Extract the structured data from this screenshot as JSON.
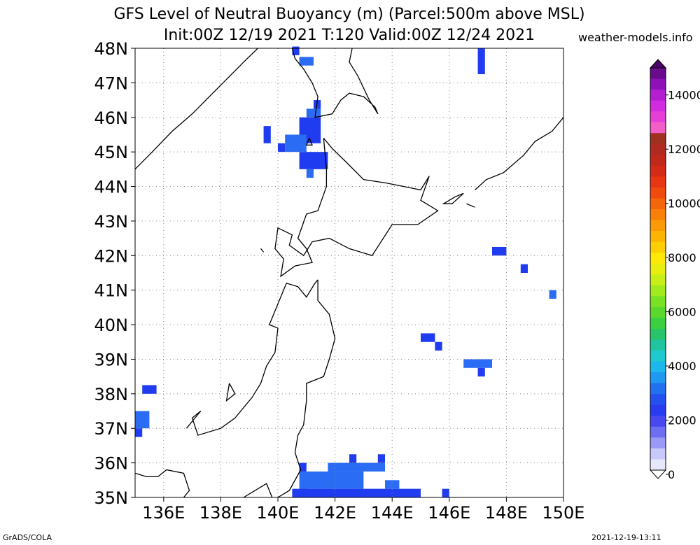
{
  "title": {
    "line1": "GFS Level of Neutral Buoyancy (m) (Parcel:500m above MSL)",
    "line2": "Init:00Z 12/19 2021 T:120 Valid:00Z 12/24 2021"
  },
  "site": "weather-models.info",
  "footer": {
    "left": "GrADS/COLA",
    "right": "2021-12-19-13:11"
  },
  "map": {
    "lon_range": [
      135,
      150
    ],
    "lat_range": [
      35,
      48
    ],
    "lon_ticks": [
      {
        "value": 136,
        "label": "136E"
      },
      {
        "value": 138,
        "label": "138E"
      },
      {
        "value": 140,
        "label": "140E"
      },
      {
        "value": 142,
        "label": "142E"
      },
      {
        "value": 144,
        "label": "144E"
      },
      {
        "value": 146,
        "label": "146E"
      },
      {
        "value": 148,
        "label": "148E"
      },
      {
        "value": 150,
        "label": "150E"
      }
    ],
    "lat_ticks": [
      {
        "value": 48,
        "label": "48N"
      },
      {
        "value": 47,
        "label": "47N"
      },
      {
        "value": 46,
        "label": "46N"
      },
      {
        "value": 45,
        "label": "45N"
      },
      {
        "value": 44,
        "label": "44N"
      },
      {
        "value": 43,
        "label": "43N"
      },
      {
        "value": 42,
        "label": "42N"
      },
      {
        "value": 41,
        "label": "41N"
      },
      {
        "value": 40,
        "label": "40N"
      },
      {
        "value": 39,
        "label": "39N"
      },
      {
        "value": 38,
        "label": "38N"
      },
      {
        "value": 37,
        "label": "37N"
      },
      {
        "value": 36,
        "label": "36N"
      },
      {
        "value": 35,
        "label": "35N"
      }
    ],
    "grid": true,
    "field_color": "#1f3cf0",
    "field_color_light": "#2b6cf5",
    "cells": [
      {
        "lon": 140.5,
        "lat": 47.8,
        "w": 0.25,
        "h": 0.25
      },
      {
        "lon": 140.75,
        "lat": 47.5,
        "w": 0.5,
        "h": 0.25
      },
      {
        "lon": 147.0,
        "lat": 47.25,
        "w": 0.25,
        "h": 0.75
      },
      {
        "lon": 141.25,
        "lat": 46.25,
        "w": 0.25,
        "h": 0.25
      },
      {
        "lon": 141.0,
        "lat": 46.0,
        "w": 0.5,
        "h": 0.25
      },
      {
        "lon": 140.75,
        "lat": 45.25,
        "w": 0.75,
        "h": 0.75
      },
      {
        "lon": 139.5,
        "lat": 45.25,
        "w": 0.25,
        "h": 0.5
      },
      {
        "lon": 140.25,
        "lat": 45.0,
        "w": 0.75,
        "h": 0.5
      },
      {
        "lon": 140.0,
        "lat": 45.0,
        "w": 0.25,
        "h": 0.25
      },
      {
        "lon": 140.75,
        "lat": 44.5,
        "w": 1.0,
        "h": 0.5
      },
      {
        "lon": 141.0,
        "lat": 44.25,
        "w": 0.25,
        "h": 0.25
      },
      {
        "lon": 147.5,
        "lat": 42.0,
        "w": 0.5,
        "h": 0.25
      },
      {
        "lon": 148.5,
        "lat": 41.5,
        "w": 0.25,
        "h": 0.25
      },
      {
        "lon": 149.5,
        "lat": 40.75,
        "w": 0.25,
        "h": 0.25
      },
      {
        "lon": 145.0,
        "lat": 39.5,
        "w": 0.5,
        "h": 0.25
      },
      {
        "lon": 145.5,
        "lat": 39.25,
        "w": 0.25,
        "h": 0.25
      },
      {
        "lon": 146.5,
        "lat": 38.75,
        "w": 1.0,
        "h": 0.25
      },
      {
        "lon": 147.0,
        "lat": 38.5,
        "w": 0.25,
        "h": 0.25
      },
      {
        "lon": 135.25,
        "lat": 38.0,
        "w": 0.5,
        "h": 0.25
      },
      {
        "lon": 135.0,
        "lat": 37.0,
        "w": 0.5,
        "h": 0.5
      },
      {
        "lon": 135.0,
        "lat": 36.75,
        "w": 0.25,
        "h": 0.25
      },
      {
        "lon": 140.75,
        "lat": 35.75,
        "w": 0.25,
        "h": 0.25
      },
      {
        "lon": 141.75,
        "lat": 35.75,
        "w": 2.0,
        "h": 0.25
      },
      {
        "lon": 142.5,
        "lat": 36.0,
        "w": 0.25,
        "h": 0.25
      },
      {
        "lon": 143.5,
        "lat": 36.0,
        "w": 0.25,
        "h": 0.25
      },
      {
        "lon": 140.75,
        "lat": 35.25,
        "w": 2.25,
        "h": 0.5
      },
      {
        "lon": 140.5,
        "lat": 35.0,
        "w": 0.5,
        "h": 0.25
      },
      {
        "lon": 140.75,
        "lat": 35.0,
        "w": 4.25,
        "h": 0.25
      },
      {
        "lon": 143.75,
        "lat": 35.25,
        "w": 0.5,
        "h": 0.25
      },
      {
        "lon": 145.75,
        "lat": 35.0,
        "w": 0.25,
        "h": 0.25
      }
    ],
    "coastlines": [
      [
        [
          135.0,
          44.5
        ],
        [
          135.6,
          45.0
        ],
        [
          136.3,
          45.6
        ],
        [
          137.0,
          46.1
        ],
        [
          137.6,
          46.6
        ],
        [
          138.2,
          47.1
        ],
        [
          138.8,
          47.6
        ],
        [
          139.3,
          48.0
        ]
      ],
      [
        [
          140.5,
          48.0
        ],
        [
          140.6,
          47.7
        ],
        [
          140.9,
          47.4
        ],
        [
          141.2,
          47.0
        ],
        [
          141.4,
          46.6
        ],
        [
          141.3,
          46.0
        ],
        [
          141.9,
          46.1
        ],
        [
          142.2,
          46.5
        ],
        [
          142.5,
          46.7
        ],
        [
          143.0,
          46.6
        ],
        [
          143.4,
          46.3
        ],
        [
          143.5,
          46.1
        ],
        [
          143.2,
          46.5
        ],
        [
          142.8,
          47.2
        ],
        [
          142.5,
          47.6
        ],
        [
          142.6,
          48.0
        ]
      ],
      [
        [
          141.6,
          45.4
        ],
        [
          141.9,
          45.1
        ],
        [
          142.4,
          44.7
        ],
        [
          143.0,
          44.2
        ],
        [
          143.8,
          44.1
        ],
        [
          144.4,
          44.0
        ],
        [
          145.0,
          43.9
        ],
        [
          145.3,
          44.3
        ],
        [
          145.0,
          43.6
        ],
        [
          145.6,
          43.3
        ],
        [
          144.9,
          42.9
        ],
        [
          144.0,
          42.9
        ],
        [
          143.3,
          42.0
        ],
        [
          142.5,
          42.2
        ],
        [
          141.8,
          42.5
        ],
        [
          141.2,
          42.4
        ],
        [
          140.9,
          42.0
        ],
        [
          140.4,
          42.3
        ],
        [
          140.5,
          42.6
        ],
        [
          140.0,
          42.8
        ],
        [
          139.9,
          42.2
        ],
        [
          140.2,
          41.9
        ],
        [
          140.1,
          41.4
        ],
        [
          140.6,
          41.7
        ],
        [
          141.2,
          41.8
        ],
        [
          141.0,
          42.2
        ],
        [
          140.7,
          42.5
        ],
        [
          141.0,
          43.2
        ],
        [
          141.4,
          43.3
        ],
        [
          141.7,
          44.0
        ],
        [
          141.7,
          44.5
        ],
        [
          141.6,
          45.4
        ]
      ],
      [
        [
          141.4,
          41.3
        ],
        [
          141.4,
          40.7
        ],
        [
          141.8,
          40.3
        ],
        [
          142.0,
          39.6
        ],
        [
          141.8,
          39.0
        ],
        [
          141.6,
          38.5
        ],
        [
          141.0,
          38.3
        ],
        [
          141.0,
          37.8
        ],
        [
          140.9,
          37.1
        ],
        [
          140.7,
          36.8
        ],
        [
          140.6,
          36.3
        ],
        [
          140.8,
          35.8
        ],
        [
          140.4,
          35.2
        ],
        [
          140.0,
          35.0
        ]
      ],
      [
        [
          139.8,
          35.0
        ],
        [
          139.6,
          35.4
        ],
        [
          139.2,
          35.2
        ],
        [
          138.8,
          35.0
        ]
      ],
      [
        [
          136.7,
          35.0
        ],
        [
          136.9,
          35.2
        ],
        [
          136.7,
          35.7
        ],
        [
          136.1,
          35.8
        ],
        [
          135.8,
          35.6
        ],
        [
          135.4,
          35.6
        ],
        [
          135.0,
          35.7
        ]
      ],
      [
        [
          136.8,
          37.0
        ],
        [
          137.3,
          37.5
        ],
        [
          137.0,
          37.3
        ],
        [
          137.2,
          36.8
        ],
        [
          138.0,
          37.0
        ],
        [
          138.5,
          37.3
        ],
        [
          139.1,
          37.9
        ],
        [
          139.4,
          38.3
        ],
        [
          139.6,
          38.8
        ],
        [
          139.9,
          39.2
        ],
        [
          140.0,
          39.9
        ],
        [
          139.7,
          40.0
        ],
        [
          140.0,
          40.6
        ],
        [
          140.3,
          41.2
        ],
        [
          140.7,
          41.1
        ],
        [
          141.0,
          40.8
        ],
        [
          141.3,
          41.2
        ],
        [
          141.4,
          41.3
        ]
      ],
      [
        [
          150.0,
          46.0
        ],
        [
          149.6,
          45.6
        ],
        [
          149.0,
          45.3
        ],
        [
          148.6,
          44.9
        ],
        [
          147.9,
          44.4
        ],
        [
          147.3,
          44.2
        ],
        [
          146.9,
          43.9
        ]
      ],
      [
        [
          146.5,
          43.8
        ],
        [
          146.1,
          43.5
        ],
        [
          145.8,
          43.5
        ],
        [
          146.2,
          43.7
        ],
        [
          146.5,
          43.8
        ]
      ],
      [
        [
          138.3,
          38.3
        ],
        [
          138.5,
          38.0
        ],
        [
          138.2,
          37.8
        ],
        [
          138.3,
          38.3
        ]
      ],
      [
        [
          139.4,
          42.2
        ],
        [
          139.5,
          42.1
        ],
        [
          139.4,
          42.2
        ]
      ],
      [
        [
          141.1,
          45.4
        ],
        [
          141.2,
          45.2
        ],
        [
          141.0,
          45.2
        ],
        [
          141.1,
          45.4
        ]
      ],
      [
        [
          146.6,
          43.5
        ],
        [
          146.9,
          43.4
        ]
      ]
    ]
  },
  "colorbar": {
    "labels": [
      "14000",
      "12000",
      "10000",
      "8000",
      "6000",
      "4000",
      "2000",
      "0"
    ],
    "colors": [
      "#6a0a8c",
      "#8e11b8",
      "#b31ed1",
      "#d22be0",
      "#e63fd6",
      "#f35ec8",
      "#a03020",
      "#b02a22",
      "#c0281c",
      "#d52a16",
      "#e83512",
      "#f04a0c",
      "#f5650a",
      "#f88008",
      "#fa9a06",
      "#fcb404",
      "#fdce04",
      "#fde808",
      "#e8ee10",
      "#c8f018",
      "#a0ea1e",
      "#7ae224",
      "#5ad82c",
      "#3ad040",
      "#28c46a",
      "#20c4a0",
      "#1ecad0",
      "#1cb8ec",
      "#1e98f0",
      "#2070f0",
      "#2550f0",
      "#2a3cf0",
      "#4848f0",
      "#6e6ef2",
      "#9a9af6",
      "#c8c8fa",
      "#e8e8fc"
    ]
  }
}
